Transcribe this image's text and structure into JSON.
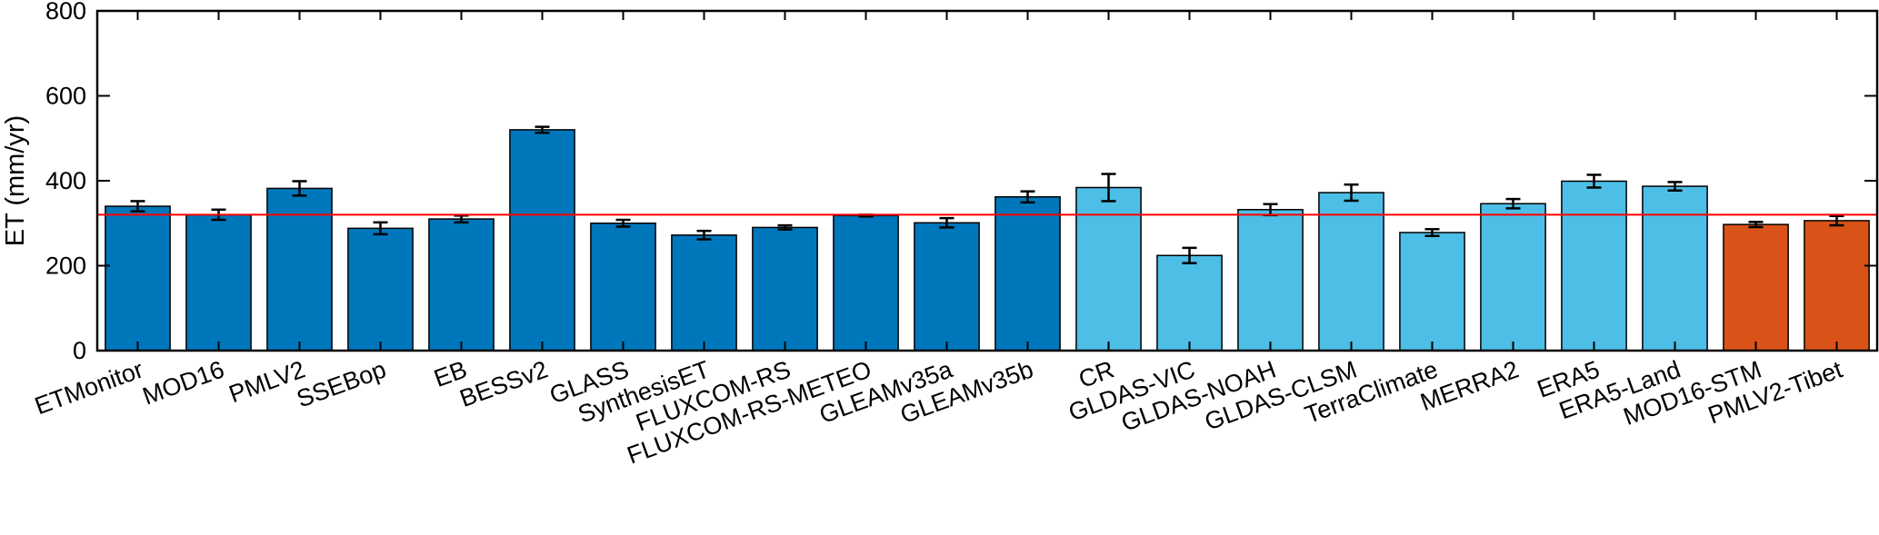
{
  "chart_data": {
    "type": "bar",
    "title": "",
    "xlabel": "",
    "ylabel": "ET (mm/yr)",
    "ylim": [
      0,
      800
    ],
    "yticks": [
      0,
      200,
      400,
      600,
      800
    ],
    "grid": false,
    "reference_line": {
      "value": 320,
      "color": "#ff0000"
    },
    "colors": {
      "dark_blue": "#0077BB",
      "light_blue": "#4DBEE6",
      "orange": "#D95319"
    },
    "categories": [
      "ETMonitor",
      "MOD16",
      "PMLV2",
      "SSEBop",
      "EB",
      "BESSv2",
      "GLASS",
      "SynthesisET",
      "FLUXCOM-RS",
      "FLUXCOM-RS-METEO",
      "GLEAMv35a",
      "GLEAMv35b",
      "CR",
      "GLDAS-VIC",
      "GLDAS-NOAH",
      "GLDAS-CLSM",
      "TerraClimate",
      "MERRA2",
      "ERA5",
      "ERA5-Land",
      "MOD16-STM",
      "PMLV2-Tibet"
    ],
    "values": [
      340,
      320,
      382,
      288,
      310,
      520,
      300,
      272,
      290,
      318,
      301,
      362,
      384,
      224,
      332,
      372,
      278,
      346,
      399,
      387,
      297,
      306
    ],
    "errors": [
      12,
      12,
      17,
      14,
      8,
      7,
      8,
      10,
      5,
      2,
      11,
      13,
      32,
      18,
      13,
      19,
      8,
      11,
      15,
      10,
      6,
      11
    ],
    "groups": [
      "dark_blue",
      "dark_blue",
      "dark_blue",
      "dark_blue",
      "dark_blue",
      "dark_blue",
      "dark_blue",
      "dark_blue",
      "dark_blue",
      "dark_blue",
      "dark_blue",
      "dark_blue",
      "light_blue",
      "light_blue",
      "light_blue",
      "light_blue",
      "light_blue",
      "light_blue",
      "light_blue",
      "light_blue",
      "orange",
      "orange"
    ]
  }
}
